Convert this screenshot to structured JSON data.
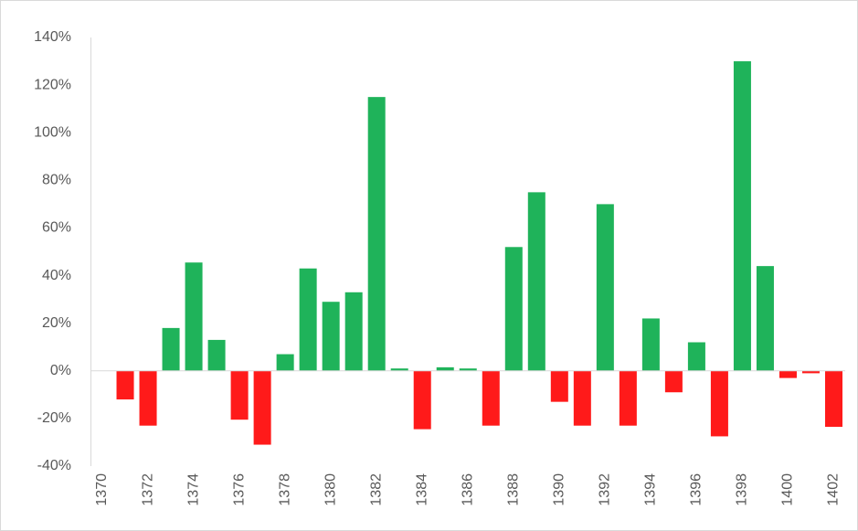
{
  "chart_data": {
    "type": "bar",
    "categories": [
      "1370",
      null,
      "1372",
      null,
      "1374",
      null,
      "1376",
      null,
      "1378",
      null,
      "1380",
      null,
      "1382",
      null,
      "1384",
      null,
      "1386",
      null,
      "1388",
      null,
      "1390",
      null,
      "1392",
      null,
      "1394",
      null,
      "1396",
      null,
      "1398",
      null,
      "1400",
      null,
      "1402"
    ],
    "values": [
      0,
      -12,
      -23,
      18,
      45.5,
      13,
      -20.5,
      -31,
      7,
      43,
      29,
      33,
      115,
      1,
      -24.5,
      1.5,
      1,
      -23,
      52,
      75,
      -13,
      -23,
      70,
      -23,
      22,
      -9,
      12,
      -27.5,
      130,
      44,
      -3,
      -1,
      -23.5
    ],
    "positive_color": "#1fb35a",
    "negative_color": "#ff1a1a",
    "ylim": [
      -40,
      140
    ],
    "yticks": [
      {
        "value": -40,
        "label": "-40%"
      },
      {
        "value": -20,
        "label": "-20%"
      },
      {
        "value": 0,
        "label": "0%"
      },
      {
        "value": 20,
        "label": "20%"
      },
      {
        "value": 40,
        "label": "40%"
      },
      {
        "value": 60,
        "label": "60%"
      },
      {
        "value": 80,
        "label": "80%"
      },
      {
        "value": 100,
        "label": "100%"
      },
      {
        "value": 120,
        "label": "120%"
      },
      {
        "value": 140,
        "label": "140%"
      }
    ],
    "grid": false
  }
}
